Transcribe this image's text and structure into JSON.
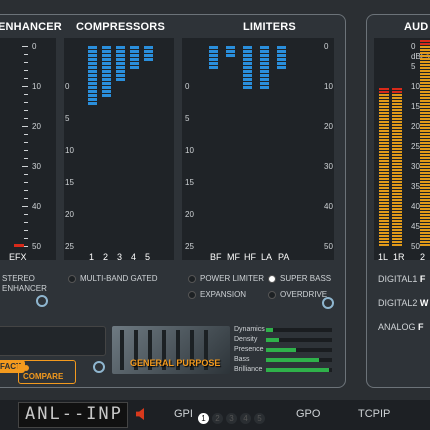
{
  "sections": {
    "enhancer": "ENHANCER",
    "compressors": "COMPRESSORS",
    "limiters": "LIMITERS",
    "audio": "AUD"
  },
  "scale_left": [
    "0",
    "10",
    "20",
    "30",
    "40",
    "50"
  ],
  "scale_comp": [
    "0",
    "5",
    "10",
    "15",
    "20",
    "25"
  ],
  "scale_lim": [
    "0",
    "5",
    "10",
    "15",
    "20",
    "25"
  ],
  "scale_audio": [
    "0",
    "5",
    "10",
    "15",
    "20",
    "25",
    "30",
    "35",
    "40",
    "45",
    "50"
  ],
  "audio_dbfs": "dBFs",
  "enhancer": {
    "channel": "EFX",
    "mode_line1": "STEREO",
    "mode_line2": "ENHANCER"
  },
  "compressors": {
    "channels": [
      "1",
      "2",
      "3",
      "4",
      "5"
    ],
    "values_db": [
      12,
      10,
      7,
      5,
      3
    ],
    "mode": "MULTI-BAND GATED"
  },
  "limiters": {
    "channels": [
      "BF",
      "MF",
      "HF",
      "LA",
      "PA"
    ],
    "values_db": [
      5,
      2,
      9,
      9,
      5
    ],
    "options": [
      {
        "label": "POWER LIMITER",
        "active": false
      },
      {
        "label": "SUPER BASS",
        "active": true
      },
      {
        "label": "EXPANSION",
        "active": false
      },
      {
        "label": "OVERDRIVE",
        "active": false
      }
    ]
  },
  "audio": {
    "channels": [
      "1L",
      "1R",
      "2"
    ],
    "rows": [
      {
        "label": "DIGITAL1",
        "value": "F"
      },
      {
        "label": "DIGITAL2",
        "value": "W"
      },
      {
        "label": "ANALOG",
        "value": "F"
      }
    ]
  },
  "preset": {
    "name": "GENERAL PURPOSE",
    "fact_label": "FACT",
    "compare_label": "COMPARE",
    "params": [
      {
        "label": "Dynamics",
        "level": 0.1
      },
      {
        "label": "Density",
        "level": 0.2
      },
      {
        "label": "Presence",
        "level": 0.45
      },
      {
        "label": "Bass",
        "level": 0.8
      },
      {
        "label": "Brilliance",
        "level": 0.95
      }
    ]
  },
  "status": {
    "display_text": "ANL--INP",
    "gpi_label": "GPI",
    "gpi_numbers": [
      "1",
      "2",
      "3",
      "4",
      "5"
    ],
    "gpo_label": "GPO",
    "tcpip_label": "TCPIP"
  },
  "colors": {
    "blue_bar": "#2a8fdc",
    "orange_bar": "#e19a1a",
    "red_bar": "#d82a1a",
    "accent_orange": "#f39a1e",
    "param_green": "#2fb14a"
  }
}
